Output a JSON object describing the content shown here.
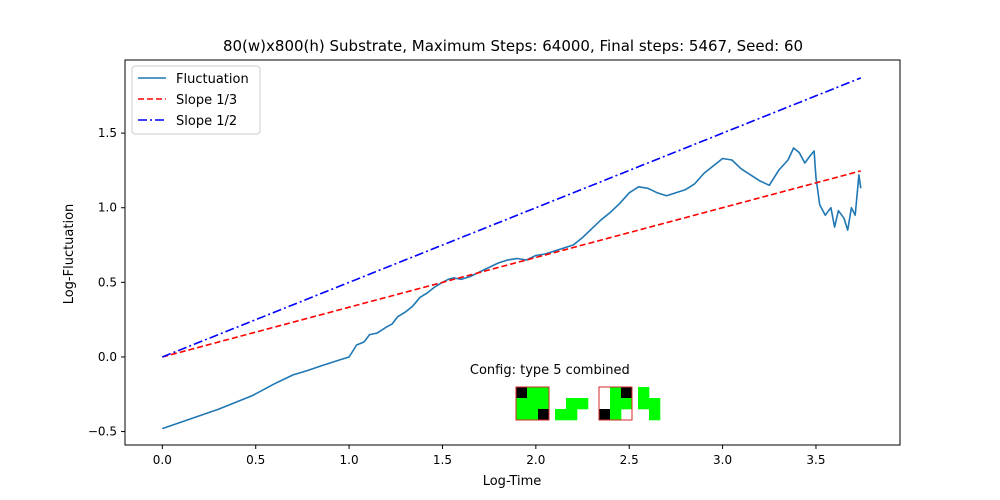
{
  "chart_data": {
    "type": "line",
    "title": "80(w)x800(h) Substrate, Maximum Steps: 64000, Final steps: 5467, Seed: 60",
    "xlabel": "Log-Time",
    "ylabel": "Log-Fluctuation",
    "xlim": [
      -0.2,
      3.95
    ],
    "ylim": [
      -0.59,
      1.99
    ],
    "xticks": [
      0.0,
      0.5,
      1.0,
      1.5,
      2.0,
      2.5,
      3.0,
      3.5
    ],
    "xtick_labels": [
      "0.0",
      "0.5",
      "1.0",
      "1.5",
      "2.0",
      "2.5",
      "3.0",
      "3.5"
    ],
    "yticks": [
      -0.5,
      0.0,
      0.5,
      1.0,
      1.5
    ],
    "ytick_labels": [
      "−0.5",
      "0.0",
      "0.5",
      "1.0",
      "1.5"
    ],
    "legend_position": "top-left",
    "grid": false,
    "series": [
      {
        "name": "Fluctuation",
        "color": "#1f77b4",
        "style": "solid",
        "x": [
          0.0,
          0.3,
          0.48,
          0.6,
          0.7,
          0.78,
          0.85,
          0.9,
          0.95,
          1.0,
          1.04,
          1.08,
          1.11,
          1.15,
          1.2,
          1.23,
          1.26,
          1.3,
          1.34,
          1.38,
          1.42,
          1.46,
          1.5,
          1.53,
          1.56,
          1.6,
          1.65,
          1.7,
          1.75,
          1.8,
          1.85,
          1.9,
          1.95,
          2.0,
          2.05,
          2.1,
          2.15,
          2.2,
          2.25,
          2.3,
          2.35,
          2.4,
          2.45,
          2.5,
          2.55,
          2.6,
          2.65,
          2.7,
          2.75,
          2.8,
          2.85,
          2.9,
          2.95,
          3.0,
          3.05,
          3.1,
          3.15,
          3.2,
          3.25,
          3.3,
          3.35,
          3.38,
          3.41,
          3.44,
          3.47,
          3.49,
          3.5,
          3.52,
          3.55,
          3.58,
          3.6,
          3.62,
          3.65,
          3.67,
          3.69,
          3.71,
          3.73,
          3.74
        ],
        "y": [
          -0.48,
          -0.35,
          -0.26,
          -0.18,
          -0.12,
          -0.09,
          -0.06,
          -0.04,
          -0.02,
          0.0,
          0.08,
          0.1,
          0.15,
          0.16,
          0.2,
          0.22,
          0.27,
          0.3,
          0.34,
          0.4,
          0.43,
          0.47,
          0.5,
          0.52,
          0.53,
          0.52,
          0.54,
          0.57,
          0.6,
          0.63,
          0.65,
          0.66,
          0.65,
          0.68,
          0.69,
          0.71,
          0.73,
          0.75,
          0.8,
          0.86,
          0.92,
          0.97,
          1.03,
          1.1,
          1.14,
          1.13,
          1.1,
          1.08,
          1.1,
          1.12,
          1.16,
          1.23,
          1.28,
          1.33,
          1.32,
          1.26,
          1.22,
          1.18,
          1.15,
          1.25,
          1.32,
          1.4,
          1.37,
          1.3,
          1.35,
          1.38,
          1.2,
          1.02,
          0.95,
          1.0,
          0.87,
          0.98,
          0.93,
          0.85,
          1.0,
          0.95,
          1.22,
          1.13
        ]
      },
      {
        "name": "Slope 1/3",
        "color": "#ff0000",
        "style": "dashed",
        "x": [
          0.0,
          3.74
        ],
        "y": [
          0.0,
          1.2467
        ]
      },
      {
        "name": "Slope 1/2",
        "color": "#0000ff",
        "style": "dashdot",
        "x": [
          0.0,
          3.74
        ],
        "y": [
          0.0,
          1.87
        ]
      }
    ],
    "annotation": {
      "text": "Config:  type 5 combined",
      "at": [
        2.0,
        -0.08
      ]
    },
    "config_tiles": [
      {
        "kind": "framed",
        "grid": "3x3",
        "cells": [
          "K",
          "G",
          "G",
          "G",
          "G",
          "G",
          "G",
          "G",
          "K"
        ]
      },
      {
        "kind": "plain",
        "grid": "3x3",
        "cells": [
          "_",
          "_",
          "_",
          "_",
          "G",
          "G",
          "G",
          "G",
          "_"
        ]
      },
      {
        "kind": "framed",
        "grid": "3x3",
        "cells": [
          "_",
          "G",
          "K",
          "_",
          "G",
          "G",
          "K",
          "G",
          "_"
        ]
      },
      {
        "kind": "plain",
        "grid": "3x3",
        "cells": [
          "G",
          "_",
          "_",
          "G",
          "G",
          "_",
          "_",
          "G",
          "_"
        ]
      }
    ],
    "tile_colors": {
      "G": "#00ff00",
      "K": "#000000",
      "frame": "#d62728"
    }
  }
}
